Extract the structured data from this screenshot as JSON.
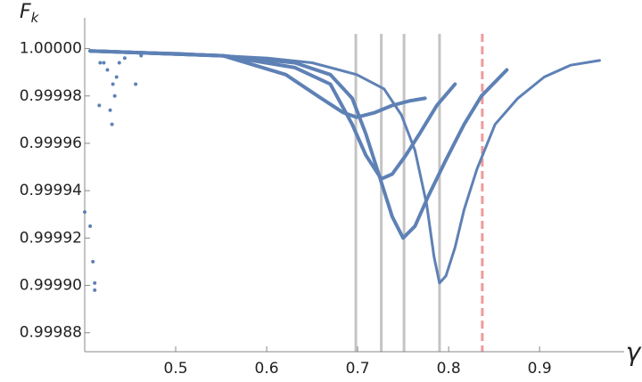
{
  "chart_data": {
    "type": "scatter",
    "xlabel": "γ",
    "ylabel": {
      "main": "F",
      "sub": "k"
    },
    "xlim": [
      0.4,
      0.99
    ],
    "ylim": [
      0.999872,
      1.000013
    ],
    "xticks": [
      0.5,
      0.6,
      0.7,
      0.8,
      0.9
    ],
    "yticks": [
      {
        "value": 1,
        "label": "1.00000"
      },
      0.99998,
      0.99996,
      0.99994,
      0.99992,
      {
        "value": 0.9999,
        "label": "0.99990"
      },
      0.99988
    ],
    "vlines": [
      {
        "x": 0.698,
        "color": "#c4c4c4",
        "dashed": false
      },
      {
        "x": 0.726,
        "color": "#c4c4c4",
        "dashed": false
      },
      {
        "x": 0.751,
        "color": "#c4c4c4",
        "dashed": false
      },
      {
        "x": 0.79,
        "color": "#c4c4c4",
        "dashed": false
      },
      {
        "x": 0.837,
        "color": "#ef9a9a",
        "dashed": true
      }
    ],
    "series": [
      {
        "color": "#5e81b5",
        "style": "line",
        "width": 3,
        "x": [
          0.406,
          0.503,
          0.601,
          0.65,
          0.699,
          0.729,
          0.748,
          0.763,
          0.776,
          0.784,
          0.79,
          0.797,
          0.807,
          0.817,
          0.831,
          0.851,
          0.876,
          0.905,
          0.934,
          0.966
        ],
        "values": [
          0.999999,
          0.999998,
          0.999996,
          0.999994,
          0.999989,
          0.999983,
          0.999972,
          0.999957,
          0.999934,
          0.999912,
          0.999901,
          0.999904,
          0.999916,
          0.999932,
          0.999949,
          0.999968,
          0.999979,
          0.999988,
          0.999993,
          0.999995
        ]
      },
      {
        "color": "#5e81b5",
        "style": "line",
        "width": 4,
        "x": [
          0.406,
          0.552,
          0.631,
          0.67,
          0.694,
          0.709,
          0.724,
          0.738,
          0.75,
          0.763,
          0.778,
          0.797,
          0.817,
          0.836,
          0.864
        ],
        "values": [
          0.999999,
          0.999997,
          0.999994,
          0.999989,
          0.999979,
          0.999964,
          0.999946,
          0.999929,
          0.99992,
          0.999925,
          0.999938,
          0.999953,
          0.999968,
          0.99998,
          0.999991
        ]
      },
      {
        "color": "#5e81b5",
        "style": "line",
        "width": 4,
        "x": [
          0.406,
          0.552,
          0.631,
          0.67,
          0.694,
          0.709,
          0.726,
          0.738,
          0.753,
          0.768,
          0.787,
          0.807
        ],
        "values": [
          0.999999,
          0.999997,
          0.999992,
          0.999985,
          0.999968,
          0.999955,
          0.999945,
          0.999947,
          0.999955,
          0.999964,
          0.999976,
          0.999985
        ]
      },
      {
        "color": "#5e81b5",
        "style": "line",
        "width": 4,
        "x": [
          0.406,
          0.552,
          0.621,
          0.66,
          0.684,
          0.699,
          0.719,
          0.738,
          0.758,
          0.774
        ],
        "values": [
          0.999999,
          0.999997,
          0.999989,
          0.999979,
          0.999973,
          0.999971,
          0.999973,
          0.999976,
          0.999978,
          0.999979
        ]
      },
      {
        "color": "#5e81b5",
        "style": "points",
        "width": 2,
        "x": [
          0.4,
          0.406,
          0.409,
          0.411,
          0.411,
          0.416,
          0.417,
          0.421,
          0.425,
          0.428,
          0.43,
          0.431,
          0.433,
          0.435,
          0.438,
          0.444,
          0.456,
          0.462
        ],
        "values": [
          0.999931,
          0.999925,
          0.99991,
          0.999901,
          0.999898,
          0.999976,
          0.999994,
          0.999994,
          0.999991,
          0.999974,
          0.999968,
          0.999985,
          0.99998,
          0.999988,
          0.999994,
          0.999996,
          0.999985,
          0.999997
        ]
      }
    ]
  }
}
